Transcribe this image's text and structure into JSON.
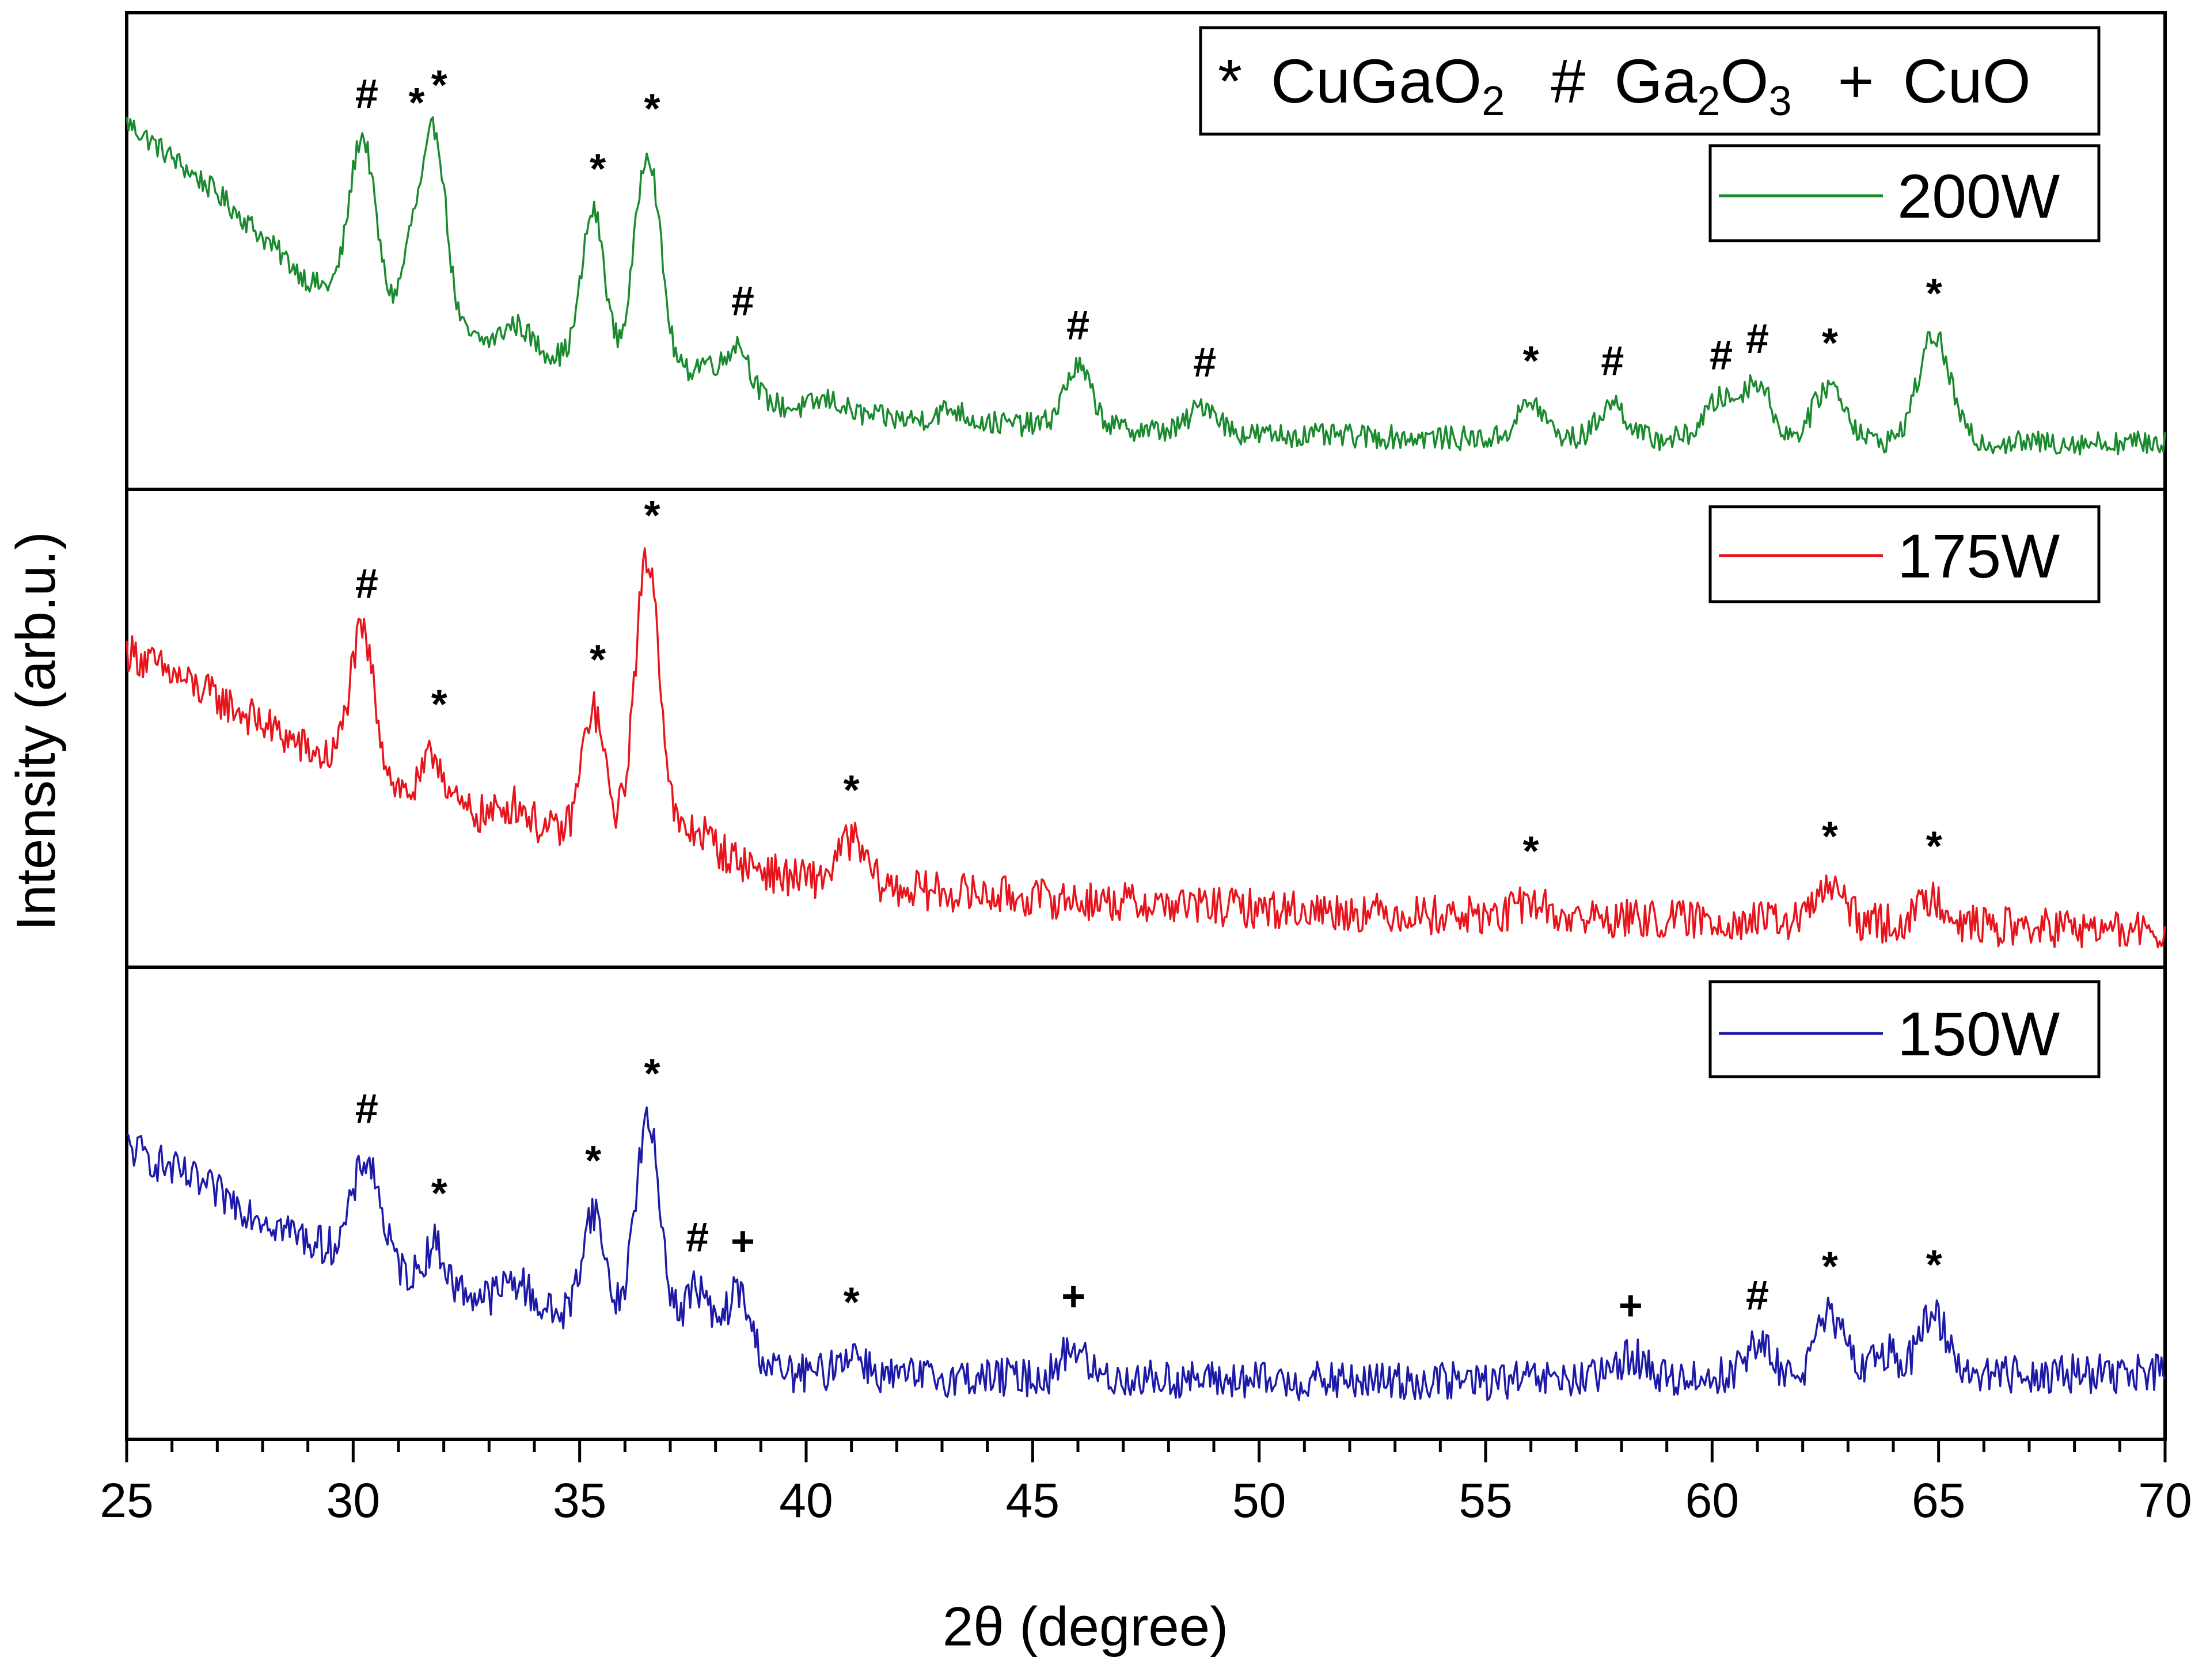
{
  "chart_data": {
    "type": "line",
    "title": "",
    "xlabel": "2θ (degree)",
    "ylabel": "Intensity (arb.u.)",
    "xlim": [
      25,
      70
    ],
    "x_ticks": [
      25,
      30,
      35,
      40,
      45,
      50,
      55,
      60,
      65,
      70
    ],
    "phase_legend": {
      "items": [
        {
          "symbol": "*",
          "name": "CuGaO",
          "subscript": "2"
        },
        {
          "symbol": "#",
          "name": "Ga",
          "subscript": "2",
          "name2": "O",
          "subscript2": "3"
        },
        {
          "symbol": "+",
          "name": "CuO"
        }
      ]
    },
    "panels": [
      {
        "name": "200W",
        "color": "#1a8a2e",
        "ylim": [
          0,
          100
        ],
        "baseline": [
          [
            25,
            88
          ],
          [
            27,
            70
          ],
          [
            29,
            48
          ],
          [
            30,
            43
          ],
          [
            31,
            40
          ],
          [
            33,
            32
          ],
          [
            35,
            28
          ],
          [
            37,
            25
          ],
          [
            38.5,
            20
          ],
          [
            39.5,
            16
          ],
          [
            42,
            13
          ],
          [
            46,
            11
          ],
          [
            50,
            9
          ],
          [
            55,
            8
          ],
          [
            60,
            8
          ],
          [
            65,
            7
          ],
          [
            70,
            7
          ]
        ],
        "peaks": [
          [
            30.2,
            42,
            0.28
          ],
          [
            31.3,
            18,
            0.2
          ],
          [
            31.8,
            49,
            0.25
          ],
          [
            33.6,
            6,
            0.3
          ],
          [
            35.3,
            38,
            0.25
          ],
          [
            36.5,
            55,
            0.28
          ],
          [
            37.8,
            5,
            0.25
          ],
          [
            38.5,
            12,
            0.25
          ],
          [
            40.5,
            3,
            0.3
          ],
          [
            43.2,
            3,
            0.3
          ],
          [
            46.0,
            15,
            0.3
          ],
          [
            48.8,
            7,
            0.3
          ],
          [
            56.0,
            9,
            0.3
          ],
          [
            57.8,
            9,
            0.3
          ],
          [
            60.2,
            10,
            0.35
          ],
          [
            61.0,
            14,
            0.3
          ],
          [
            62.6,
            14,
            0.35
          ],
          [
            64.9,
            27,
            0.35
          ]
        ],
        "noise": 3,
        "markers": [
          {
            "x": 30.3,
            "symbol": "#"
          },
          {
            "x": 31.4,
            "symbol": "*"
          },
          {
            "x": 31.9,
            "symbol": "*"
          },
          {
            "x": 35.4,
            "symbol": "*"
          },
          {
            "x": 36.6,
            "symbol": "*"
          },
          {
            "x": 38.6,
            "symbol": "#"
          },
          {
            "x": 46.0,
            "symbol": "#"
          },
          {
            "x": 48.8,
            "symbol": "#"
          },
          {
            "x": 56.0,
            "symbol": "*"
          },
          {
            "x": 57.8,
            "symbol": "#"
          },
          {
            "x": 60.2,
            "symbol": "#"
          },
          {
            "x": 61.0,
            "symbol": "#"
          },
          {
            "x": 62.6,
            "symbol": "*"
          },
          {
            "x": 64.9,
            "symbol": "*"
          }
        ]
      },
      {
        "name": "175W",
        "color": "#e8141c",
        "ylim": [
          0,
          100
        ],
        "baseline": [
          [
            25,
            75
          ],
          [
            27,
            63
          ],
          [
            29,
            50
          ],
          [
            30,
            44
          ],
          [
            32,
            36
          ],
          [
            34,
            30
          ],
          [
            36,
            27
          ],
          [
            38,
            24
          ],
          [
            39.5,
            18
          ],
          [
            42,
            15
          ],
          [
            46,
            12
          ],
          [
            50,
            10
          ],
          [
            55,
            8
          ],
          [
            60,
            7
          ],
          [
            65,
            6
          ],
          [
            70,
            4
          ]
        ],
        "peaks": [
          [
            30.2,
            36,
            0.28
          ],
          [
            31.8,
            12,
            0.22
          ],
          [
            33.6,
            5,
            0.3
          ],
          [
            35.3,
            32,
            0.25
          ],
          [
            36.5,
            72,
            0.28
          ],
          [
            37.6,
            5,
            0.3
          ],
          [
            41.0,
            11,
            0.3
          ],
          [
            56.0,
            4,
            0.3
          ],
          [
            62.6,
            9,
            0.3
          ],
          [
            64.9,
            7,
            0.3
          ]
        ],
        "noise": 5,
        "markers": [
          {
            "x": 30.3,
            "symbol": "#"
          },
          {
            "x": 31.9,
            "symbol": "*"
          },
          {
            "x": 35.4,
            "symbol": "*"
          },
          {
            "x": 36.6,
            "symbol": "*"
          },
          {
            "x": 41.0,
            "symbol": "*"
          },
          {
            "x": 56.0,
            "symbol": "*"
          },
          {
            "x": 62.6,
            "symbol": "*"
          },
          {
            "x": 64.9,
            "symbol": "*"
          }
        ]
      },
      {
        "name": "150W",
        "color": "#1d1aa8",
        "ylim": [
          0,
          100
        ],
        "baseline": [
          [
            25,
            70
          ],
          [
            27,
            58
          ],
          [
            29,
            46
          ],
          [
            31,
            38
          ],
          [
            33,
            31
          ],
          [
            35,
            26
          ],
          [
            37,
            23
          ],
          [
            38.5,
            18
          ],
          [
            39.5,
            12
          ],
          [
            42,
            11
          ],
          [
            46,
            11
          ],
          [
            50,
            10
          ],
          [
            55,
            10
          ],
          [
            60,
            11
          ],
          [
            65,
            12
          ],
          [
            70,
            12
          ]
        ],
        "peaks": [
          [
            30.3,
            26,
            0.3
          ],
          [
            31.8,
            10,
            0.2
          ],
          [
            33.6,
            6,
            0.3
          ],
          [
            35.3,
            28,
            0.25
          ],
          [
            36.5,
            52,
            0.28
          ],
          [
            37.6,
            13,
            0.25
          ],
          [
            38.5,
            15,
            0.25
          ],
          [
            41.0,
            6,
            0.3
          ],
          [
            45.9,
            8,
            0.25
          ],
          [
            58.2,
            6,
            0.3
          ],
          [
            61.0,
            8,
            0.3
          ],
          [
            62.6,
            15,
            0.3
          ],
          [
            63.8,
            6,
            0.3
          ],
          [
            64.9,
            15,
            0.3
          ]
        ],
        "noise": 5,
        "markers": [
          {
            "x": 30.3,
            "symbol": "#"
          },
          {
            "x": 31.9,
            "symbol": "*"
          },
          {
            "x": 35.3,
            "symbol": "*"
          },
          {
            "x": 36.6,
            "symbol": "*"
          },
          {
            "x": 37.6,
            "symbol": "#"
          },
          {
            "x": 38.6,
            "symbol": "+"
          },
          {
            "x": 41.0,
            "symbol": "*"
          },
          {
            "x": 45.9,
            "symbol": "+"
          },
          {
            "x": 58.2,
            "symbol": "+"
          },
          {
            "x": 61.0,
            "symbol": "#"
          },
          {
            "x": 62.6,
            "symbol": "*"
          },
          {
            "x": 64.9,
            "symbol": "*"
          }
        ]
      }
    ]
  }
}
